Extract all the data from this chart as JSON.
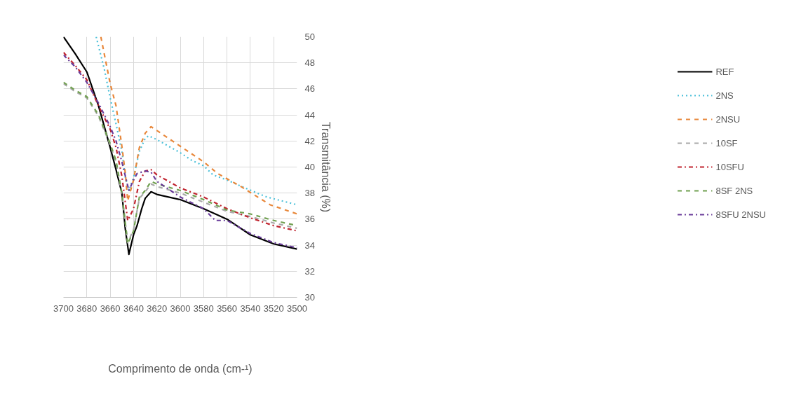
{
  "chart_data": {
    "type": "line",
    "xlabel": "Comprimento de onda (cm-¹)",
    "ylabel": "Transmitância (%)",
    "xlim": [
      3700,
      3500
    ],
    "xticks": [
      3700,
      3680,
      3660,
      3640,
      3620,
      3600,
      3580,
      3560,
      3540,
      3520,
      3500
    ],
    "ylim": [
      30,
      50
    ],
    "yticks": [
      30,
      32,
      34,
      36,
      38,
      40,
      42,
      44,
      46,
      48,
      50
    ],
    "grid": true,
    "legend": "right",
    "series": [
      {
        "name": "REF",
        "color": "#000000",
        "line_style": "solid",
        "x": [
          3700,
          3690,
          3680,
          3670,
          3660,
          3655,
          3650,
          3647,
          3644,
          3640,
          3637,
          3633,
          3630,
          3625,
          3620,
          3600,
          3580,
          3560,
          3540,
          3520,
          3500
        ],
        "values": [
          50,
          48.7,
          47.3,
          44.7,
          41.5,
          39.8,
          38.0,
          35.2,
          33.3,
          34.8,
          35.5,
          36.8,
          37.6,
          38.1,
          37.9,
          37.5,
          36.8,
          36.0,
          34.8,
          34.1,
          33.7
        ]
      },
      {
        "name": "2NS",
        "color": "#4bc0d9",
        "line_style": "dotted",
        "x": [
          3672,
          3665,
          3660,
          3655,
          3650,
          3647,
          3644,
          3640,
          3635,
          3630,
          3627,
          3620,
          3610,
          3600,
          3590,
          3580,
          3572,
          3560,
          3542,
          3526,
          3500
        ],
        "values": [
          50,
          47.5,
          45.3,
          43.3,
          41.2,
          39.2,
          38.2,
          39.2,
          41.2,
          42.2,
          42.4,
          42.1,
          41.6,
          41.1,
          40.5,
          40.1,
          39.4,
          39.0,
          38.3,
          37.7,
          37.1
        ]
      },
      {
        "name": "2NSU",
        "color": "#e8873a",
        "line_style": "dashed",
        "x": [
          3668,
          3660,
          3655,
          3650,
          3647,
          3645,
          3640,
          3635,
          3630,
          3625,
          3620,
          3600,
          3580,
          3568,
          3548,
          3523,
          3500
        ],
        "values": [
          50,
          46.4,
          44.7,
          41.6,
          39.5,
          37.4,
          39.0,
          41.5,
          42.6,
          43.1,
          42.8,
          41.6,
          40.4,
          39.5,
          38.5,
          37.1,
          36.4
        ]
      },
      {
        "name": "10SF",
        "color": "#a9a9a9",
        "line_style": "dashed",
        "x": [
          3700,
          3690,
          3680,
          3670,
          3660,
          3655,
          3650,
          3645,
          3640,
          3635,
          3630,
          3625,
          3620,
          3600,
          3580,
          3560,
          3540,
          3520,
          3500
        ],
        "values": [
          46.4,
          45.8,
          45.3,
          43.9,
          41.7,
          40.4,
          37.9,
          34.2,
          35.2,
          37.6,
          38.1,
          38.7,
          38.5,
          38.0,
          37.3,
          36.6,
          36.2,
          35.7,
          35.3
        ]
      },
      {
        "name": "10SFU",
        "color": "#c0232e",
        "line_style": "dashdot",
        "x": [
          3700,
          3690,
          3680,
          3670,
          3660,
          3655,
          3650,
          3645,
          3640,
          3635,
          3630,
          3625,
          3620,
          3610,
          3600,
          3580,
          3560,
          3540,
          3520,
          3500
        ],
        "values": [
          48.8,
          47.8,
          46.7,
          44.7,
          42.9,
          41.5,
          39.3,
          35.9,
          36.8,
          38.9,
          39.7,
          39.8,
          39.4,
          38.9,
          38.4,
          37.7,
          36.8,
          36.1,
          35.5,
          35.1
        ]
      },
      {
        "name": "8SF 2NS",
        "color": "#70a050",
        "line_style": "dashed",
        "x": [
          3700,
          3690,
          3680,
          3670,
          3660,
          3655,
          3650,
          3645,
          3640,
          3635,
          3630,
          3625,
          3620,
          3600,
          3580,
          3560,
          3540,
          3520,
          3500
        ],
        "values": [
          46.5,
          45.9,
          45.4,
          44.0,
          41.8,
          40.5,
          38.0,
          34.1,
          35.1,
          37.7,
          38.2,
          38.9,
          38.7,
          38.2,
          37.5,
          36.7,
          36.4,
          35.9,
          35.5
        ]
      },
      {
        "name": "8SFU 2NSU",
        "color": "#6a3d9a",
        "line_style": "dashdot",
        "x": [
          3700,
          3690,
          3680,
          3670,
          3660,
          3655,
          3650,
          3644,
          3640,
          3637,
          3630,
          3625,
          3620,
          3610,
          3600,
          3580,
          3570,
          3560,
          3540,
          3520,
          3500
        ],
        "values": [
          48.6,
          47.7,
          46.5,
          44.9,
          43.1,
          42.0,
          40.4,
          38.2,
          39.0,
          39.5,
          39.7,
          39.6,
          38.9,
          38.3,
          37.7,
          36.8,
          35.9,
          35.9,
          34.9,
          34.2,
          33.8
        ]
      }
    ]
  }
}
